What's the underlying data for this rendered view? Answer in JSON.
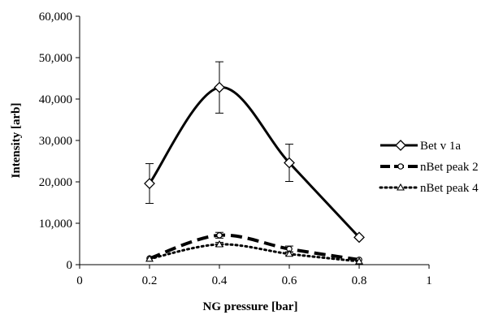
{
  "chart_data": {
    "type": "line",
    "title": "",
    "xlabel": "NG pressure [bar]",
    "ylabel": "Intensity [arb]",
    "xlim": [
      0,
      1
    ],
    "ylim": [
      0,
      60000
    ],
    "x_ticks": [
      "0",
      "0.2",
      "0.4",
      "0.6",
      "0.8",
      "1"
    ],
    "y_ticks": [
      "0",
      "10,000",
      "20,000",
      "30,000",
      "40,000",
      "50,000",
      "60,000"
    ],
    "x_tick_values": [
      0,
      0.2,
      0.4,
      0.6,
      0.8,
      1
    ],
    "y_tick_values": [
      0,
      10000,
      20000,
      30000,
      40000,
      50000,
      60000
    ],
    "grid": false,
    "legend_position": "right",
    "series": [
      {
        "name": "Bet v 1a",
        "style": "solid",
        "marker": "diamond",
        "color": "#000000",
        "x": [
          0.2,
          0.4,
          0.6,
          0.8
        ],
        "y": [
          19600,
          42800,
          24600,
          6600
        ],
        "err": [
          4800,
          6200,
          4500,
          0
        ]
      },
      {
        "name": "nBet peak 2",
        "style": "dashed",
        "marker": "circle",
        "color": "#000000",
        "x": [
          0.2,
          0.4,
          0.6,
          0.8
        ],
        "y": [
          1500,
          7100,
          3800,
          1200
        ],
        "err": [
          0,
          700,
          700,
          0
        ]
      },
      {
        "name": "nBet peak 4",
        "style": "dotted",
        "marker": "triangle",
        "color": "#000000",
        "x": [
          0.2,
          0.4,
          0.6,
          0.8
        ],
        "y": [
          1400,
          4900,
          2600,
          800
        ],
        "err": [
          0,
          500,
          400,
          0
        ]
      }
    ]
  }
}
